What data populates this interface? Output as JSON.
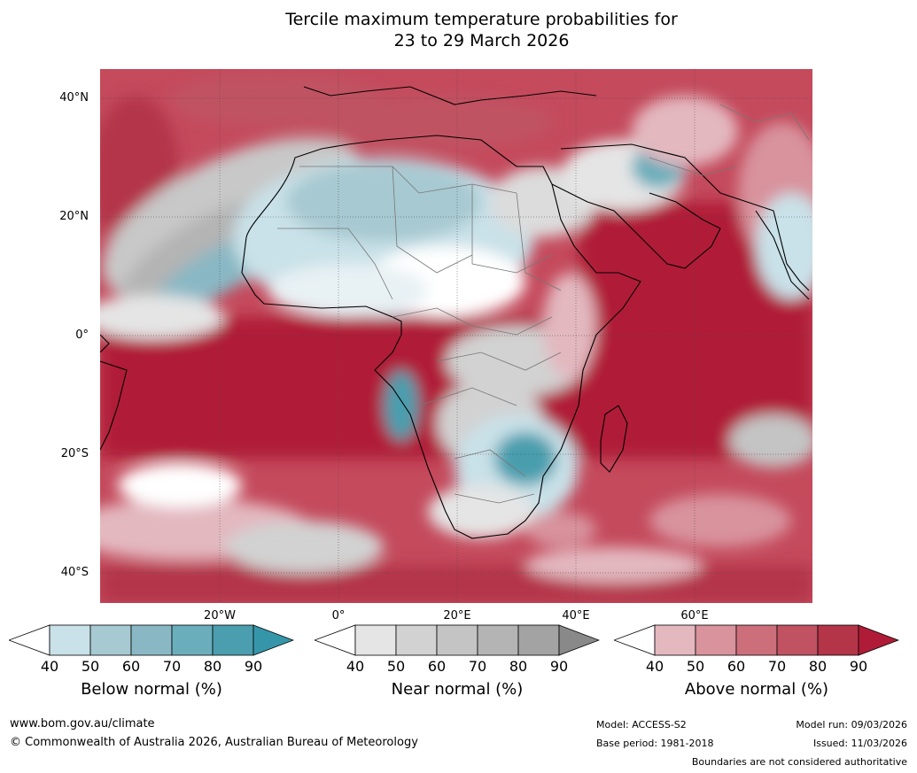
{
  "title": {
    "line1": "Tercile maximum temperature probabilities for",
    "line2": "23 to 29 March 2026"
  },
  "map": {
    "lat_labels": [
      "40°N",
      "20°N",
      "0°",
      "20°S",
      "40°S"
    ],
    "lon_labels": [
      "20°W",
      "0°",
      "20°E",
      "40°E",
      "60°E"
    ]
  },
  "colorbars": [
    {
      "name": "Below normal (%)",
      "ticks": [
        "40",
        "50",
        "60",
        "70",
        "80",
        "90"
      ],
      "colors": [
        "#ffffff",
        "#c9e1e8",
        "#a7c9d1",
        "#89b8c4",
        "#6aaebb",
        "#4a9eae",
        "#3596aa"
      ]
    },
    {
      "name": "Near normal (%)",
      "ticks": [
        "40",
        "50",
        "60",
        "70",
        "80",
        "90"
      ],
      "colors": [
        "#ffffff",
        "#e5e5e5",
        "#d2d2d2",
        "#c4c4c4",
        "#b4b4b4",
        "#a3a3a3",
        "#898989"
      ]
    },
    {
      "name": "Above normal (%)",
      "ticks": [
        "40",
        "50",
        "60",
        "70",
        "80",
        "90"
      ],
      "colors": [
        "#ffffff",
        "#e3b8bf",
        "#d8939d",
        "#cc6f7b",
        "#c05262",
        "#b43448",
        "#b01c37"
      ]
    }
  ],
  "footer": {
    "website": "www.bom.gov.au/climate",
    "copyright": "© Commonwealth of Australia 2026, Australian Bureau of Meteorology",
    "model": "Model: ACCESS-S2",
    "base_period": "Base period: 1981-2018",
    "model_run": "Model run: 09/03/2026",
    "issued": "Issued: 11/03/2026",
    "disclaimer": "Boundaries are not considered authoritative"
  }
}
